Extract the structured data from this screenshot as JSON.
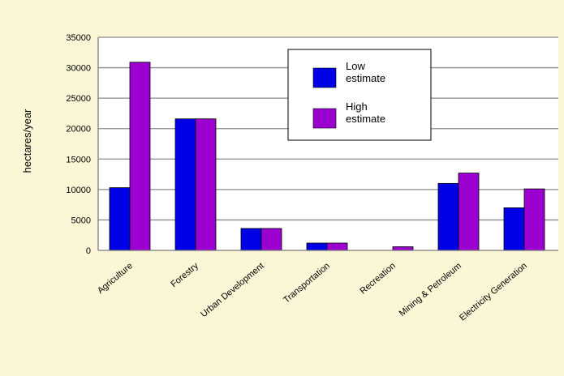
{
  "chart_data": {
    "type": "bar",
    "title": "",
    "xlabel": "",
    "ylabel": "hectares/year",
    "ylim": [
      0,
      35000
    ],
    "yticks": [
      0,
      5000,
      10000,
      15000,
      20000,
      25000,
      30000,
      35000
    ],
    "grid": true,
    "legend_position": "top-center",
    "categories": [
      "Agriculture",
      "Forestry",
      "Urban Development",
      "Transportation",
      "Recreation",
      "Mining & Petroleum",
      "Electricity Generation"
    ],
    "series": [
      {
        "name": "Low estimate",
        "color": "#0000e6",
        "values": [
          10300,
          21600,
          3600,
          1200,
          0,
          11000,
          7000
        ]
      },
      {
        "name": "High estimate",
        "color": "#9b00d1",
        "values": [
          30900,
          21600,
          3600,
          1200,
          600,
          12700,
          10100
        ]
      }
    ],
    "legend_lines": [
      [
        "Low",
        "estimate"
      ],
      [
        "High",
        "estimate"
      ]
    ]
  },
  "colors": {
    "page_background": "#e9e3a8",
    "frame_background": "#fbf7d6",
    "plot_background": "#ffffff",
    "gridline": "#8c8c8c"
  }
}
